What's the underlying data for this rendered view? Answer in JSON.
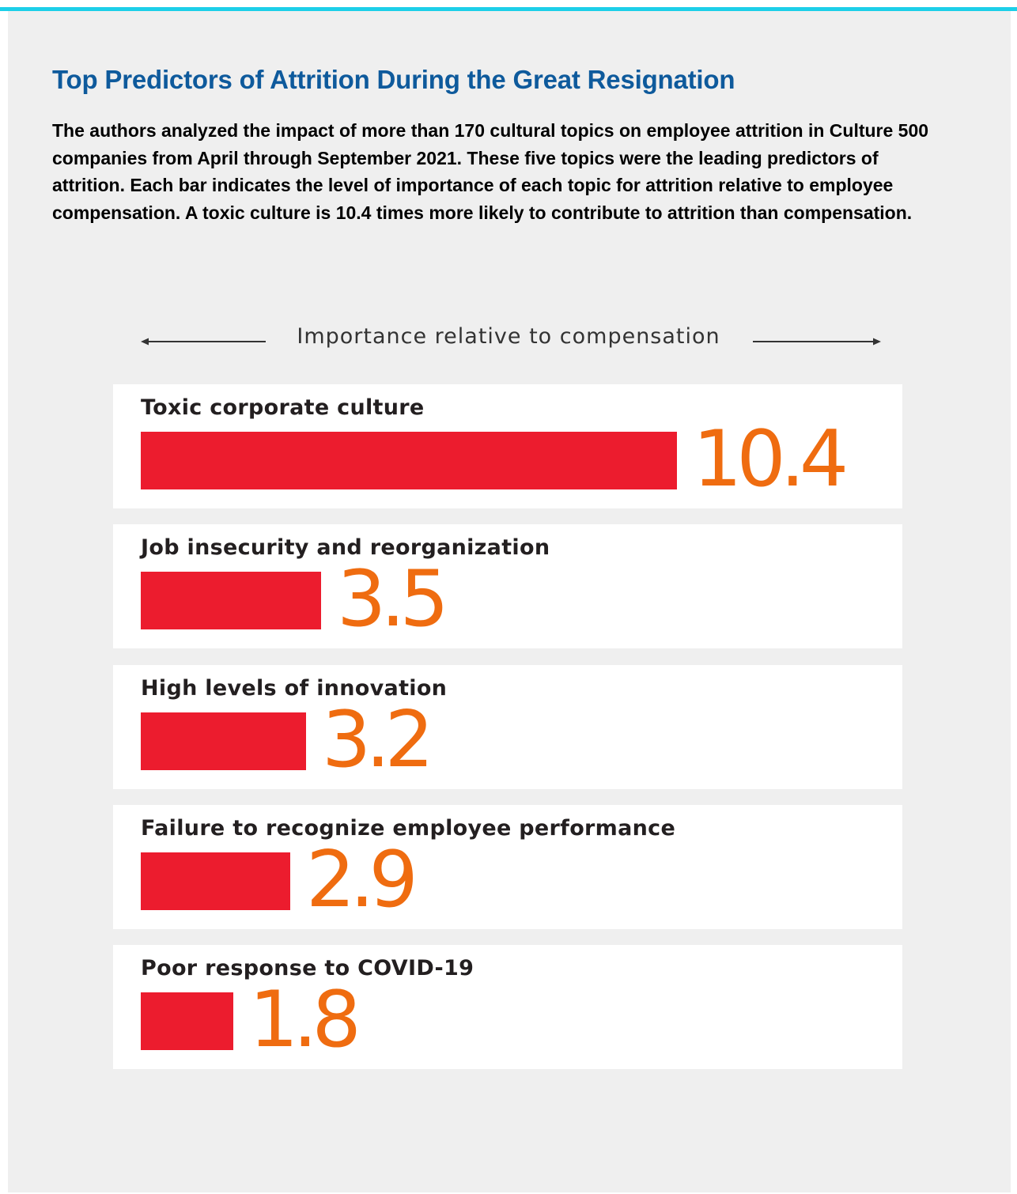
{
  "header": {
    "title": "Top Predictors of Attrition During the Great Resignation",
    "description": "The authors analyzed the impact of more than 170 cultural topics on employee attrition in Culture 500 companies from April through September 2021. These five topics were the leading predictors of attrition. Each bar indicates the level of importance of each topic for attrition relative to employee compensation. A toxic culture is 10.4 times more likely to contribute to attrition than compensation."
  },
  "colors": {
    "accent_line": "#1ccfe8",
    "title": "#0e5a9c",
    "bar": "#ec1c2e",
    "value": "#ef6c10"
  },
  "chart_data": {
    "type": "bar",
    "orientation": "horizontal",
    "axis_label": "Importance relative to compensation",
    "categories": [
      "Toxic corporate culture",
      "Job insecurity and reorganization",
      "High levels of innovation",
      "Failure to recognize employee performance",
      "Poor response to COVID-19"
    ],
    "values": [
      10.4,
      3.5,
      3.2,
      2.9,
      1.8
    ],
    "value_labels": [
      "10.4",
      "3.5",
      "3.2",
      "2.9",
      "1.8"
    ],
    "xlim": [
      0,
      10.4
    ],
    "grid": false,
    "legend": "none"
  }
}
